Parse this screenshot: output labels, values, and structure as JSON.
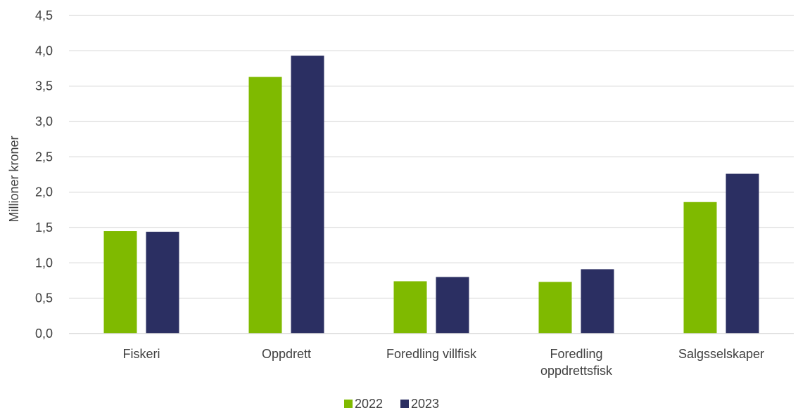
{
  "chart_data": {
    "type": "bar",
    "categories": [
      [
        "Fiskeri"
      ],
      [
        "Oppdrett"
      ],
      [
        "Foredling villfisk"
      ],
      [
        "Foredling",
        "oppdrettsfisk"
      ],
      [
        "Salgsselskaper"
      ]
    ],
    "series": [
      {
        "name": "2022",
        "color": "#7fba00",
        "values": [
          1.45,
          3.63,
          0.74,
          0.73,
          1.86
        ]
      },
      {
        "name": "2023",
        "color": "#2b2f62",
        "values": [
          1.44,
          3.93,
          0.8,
          0.91,
          2.26
        ]
      }
    ],
    "title": "",
    "xlabel": "",
    "ylabel": "Millioner kroner",
    "ylim": [
      0,
      4.5
    ],
    "yticks": [
      "0,0",
      "0,5",
      "1,0",
      "1,5",
      "2,0",
      "2,5",
      "3,0",
      "3,5",
      "4,0",
      "4,5"
    ],
    "grid": true,
    "legend_position": "bottom"
  }
}
